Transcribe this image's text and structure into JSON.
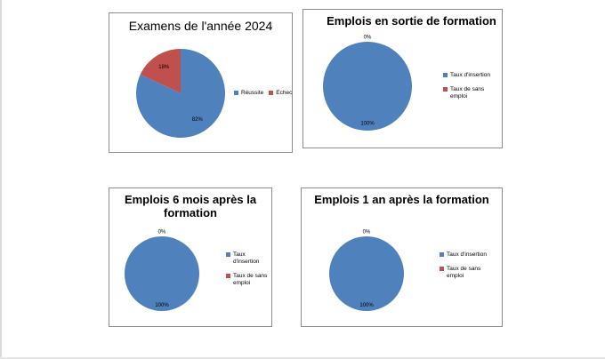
{
  "colors": {
    "blue": "#4f81bd",
    "red": "#c0504d"
  },
  "chart_data": [
    {
      "type": "pie",
      "title": "Examens de l'année 2024",
      "categories": [
        "Réussite",
        "Echec"
      ],
      "values": [
        82,
        18
      ],
      "labels": [
        "82%",
        "18%"
      ],
      "colors": [
        "#4f81bd",
        "#c0504d"
      ],
      "legend_position": "right",
      "legend_layout": "horizontal"
    },
    {
      "type": "pie",
      "title": "Emplois en sortie de formation",
      "categories": [
        "Taux d'insertion",
        "Taux de sans emploi"
      ],
      "values": [
        100,
        0
      ],
      "labels": [
        "100%",
        "0%"
      ],
      "colors": [
        "#4f81bd",
        "#c0504d"
      ],
      "legend_position": "right",
      "legend_layout": "vertical"
    },
    {
      "type": "pie",
      "title": "Emplois 6 mois après la formation",
      "categories": [
        "Taux d'insertion",
        "Taux de sans emploi"
      ],
      "values": [
        100,
        0
      ],
      "labels": [
        "100%",
        "0%"
      ],
      "colors": [
        "#4f81bd",
        "#c0504d"
      ],
      "legend_position": "right",
      "legend_layout": "vertical"
    },
    {
      "type": "pie",
      "title": "Emplois 1 an après la formation",
      "categories": [
        "Taux d'insertion",
        "Taux de sans emploi"
      ],
      "values": [
        100,
        0
      ],
      "labels": [
        "100%",
        "0%"
      ],
      "colors": [
        "#4f81bd",
        "#c0504d"
      ],
      "legend_position": "right",
      "legend_layout": "vertical"
    }
  ]
}
